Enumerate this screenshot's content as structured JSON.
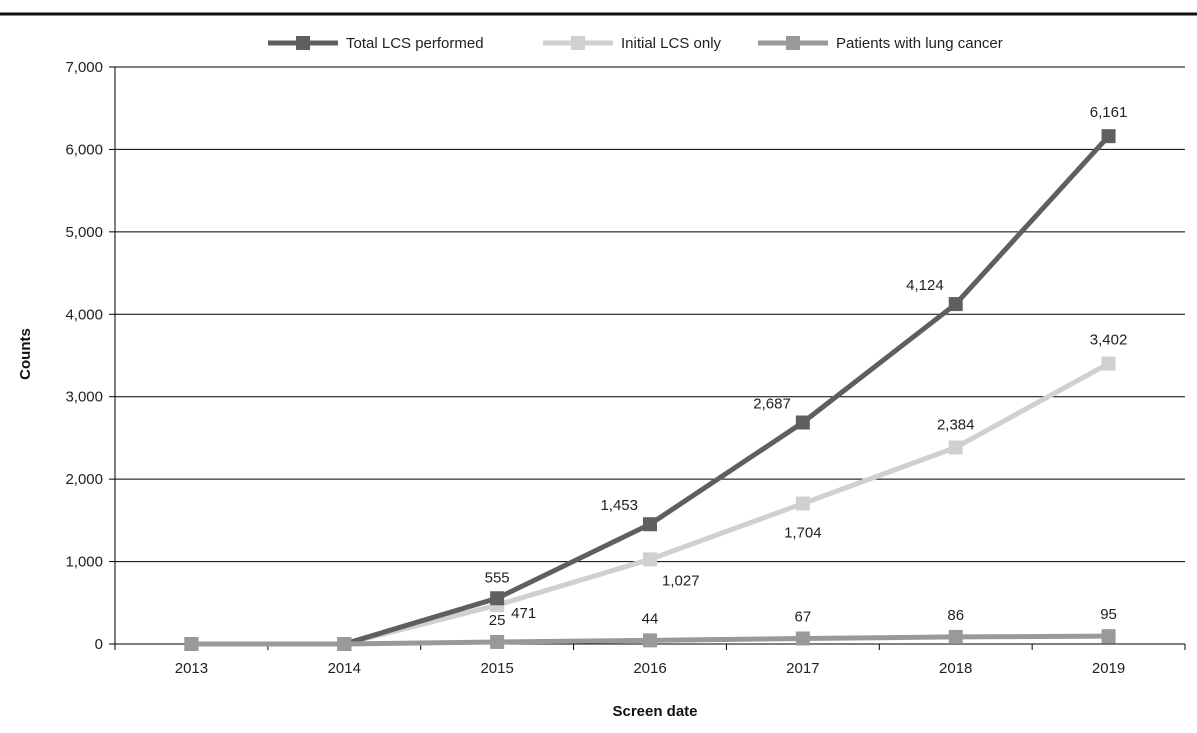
{
  "chart_data": {
    "type": "line",
    "xlabel": "Screen date",
    "ylabel": "Counts",
    "categories": [
      "2013",
      "2014",
      "2015",
      "2016",
      "2017",
      "2018",
      "2019"
    ],
    "ylim": [
      0,
      7000
    ],
    "yticks": [
      0,
      1000,
      2000,
      3000,
      4000,
      5000,
      6000,
      7000
    ],
    "ytick_labels": [
      "0",
      "1,000",
      "2,000",
      "3,000",
      "4,000",
      "5,000",
      "6,000",
      "7,000"
    ],
    "grid": true,
    "legend_position": "top",
    "series": [
      {
        "name": "Total LCS performed",
        "color": "#5f5f5f",
        "values": [
          0,
          0,
          555,
          1453,
          2687,
          4124,
          6161
        ],
        "labels": [
          "",
          "",
          "555",
          "1,453",
          "2,687",
          "4,124",
          "6,161"
        ]
      },
      {
        "name": "Initial LCS only",
        "color": "#d0d0d0",
        "values": [
          0,
          0,
          471,
          1027,
          1704,
          2384,
          3402
        ],
        "labels": [
          "",
          "",
          "471",
          "1,027",
          "1,704",
          "2,384",
          "3,402"
        ]
      },
      {
        "name": "Patients with lung cancer",
        "color": "#999999",
        "values": [
          0,
          0,
          25,
          44,
          67,
          86,
          95
        ],
        "labels": [
          "",
          "",
          "25",
          "44",
          "67",
          "86",
          "95"
        ]
      }
    ]
  }
}
